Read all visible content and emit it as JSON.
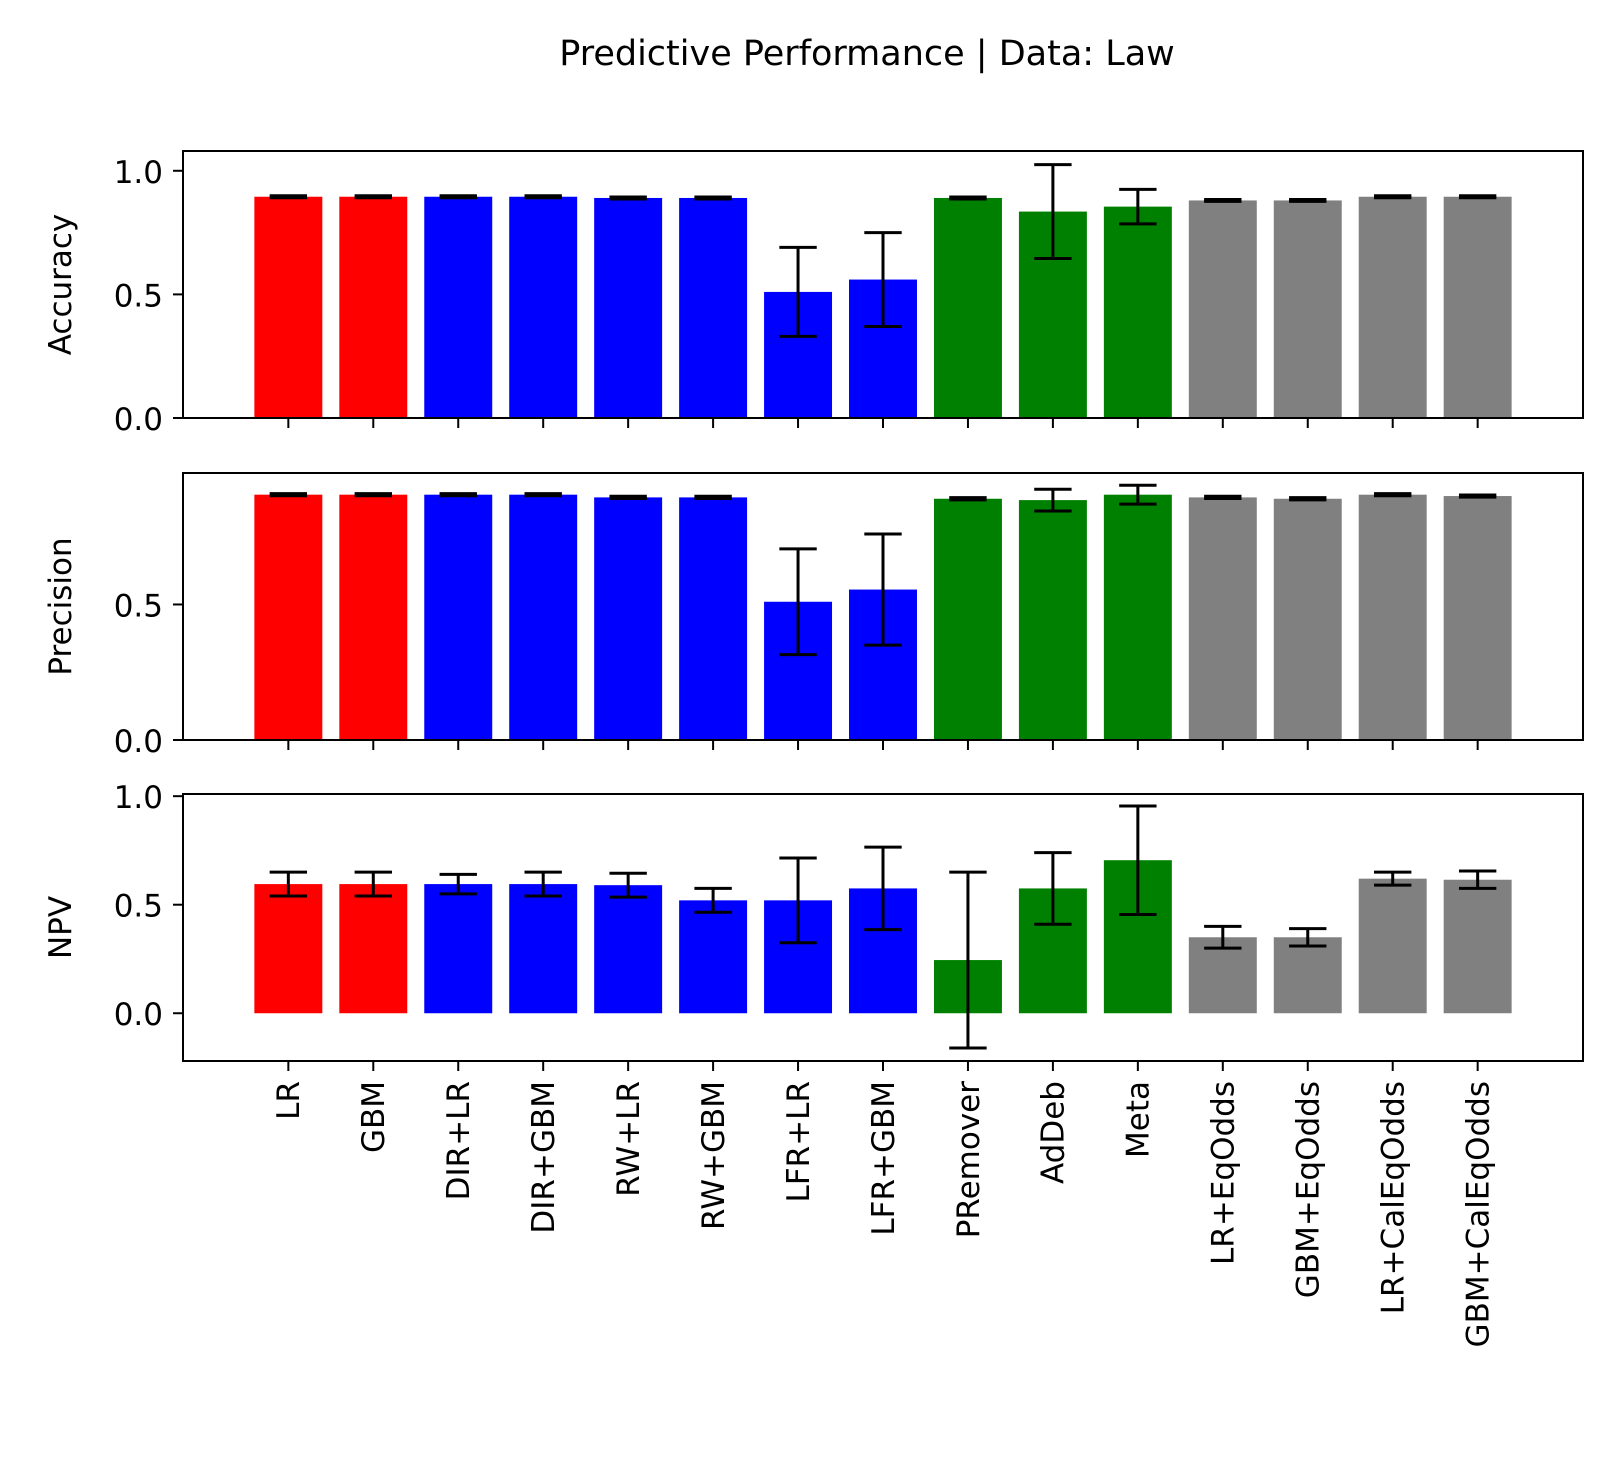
{
  "chart_data": {
    "type": "bar",
    "title": "Predictive Performance | Data: Law",
    "categories": [
      "LR",
      "GBM",
      "DIR+LR",
      "DIR+GBM",
      "RW+LR",
      "RW+GBM",
      "LFR+LR",
      "LFR+GBM",
      "PRemover",
      "AdDeb",
      "Meta",
      "LR+EqOdds",
      "GBM+EqOdds",
      "LR+CalEqOdds",
      "GBM+CalEqOdds"
    ],
    "bar_colors": [
      "#ff0000",
      "#ff0000",
      "#0000ff",
      "#0000ff",
      "#0000ff",
      "#0000ff",
      "#0000ff",
      "#0000ff",
      "#008000",
      "#008000",
      "#008000",
      "#808080",
      "#808080",
      "#808080",
      "#808080"
    ],
    "error_bar_color": "#000000",
    "panels": [
      {
        "ylabel": "Accuracy",
        "ylim": [
          0,
          1.08
        ],
        "yticks": [
          0.0,
          0.5,
          1.0
        ],
        "ytick_labels": [
          "0.0",
          "0.5",
          "1.0"
        ],
        "values": [
          0.895,
          0.895,
          0.895,
          0.895,
          0.89,
          0.89,
          0.51,
          0.56,
          0.89,
          0.835,
          0.855,
          0.88,
          0.88,
          0.895,
          0.895
        ],
        "errors": [
          0.004,
          0.004,
          0.004,
          0.004,
          0.004,
          0.004,
          0.18,
          0.19,
          0.004,
          0.19,
          0.07,
          0.004,
          0.004,
          0.004,
          0.004
        ]
      },
      {
        "ylabel": "Precision",
        "ylim": [
          0,
          0.985
        ],
        "yticks": [
          0.0,
          0.5
        ],
        "ytick_labels": [
          "0.0",
          "0.5"
        ],
        "values": [
          0.905,
          0.905,
          0.905,
          0.905,
          0.895,
          0.895,
          0.51,
          0.555,
          0.89,
          0.885,
          0.905,
          0.895,
          0.89,
          0.905,
          0.9
        ],
        "errors": [
          0.004,
          0.004,
          0.004,
          0.004,
          0.004,
          0.004,
          0.195,
          0.205,
          0.004,
          0.04,
          0.035,
          0.004,
          0.004,
          0.004,
          0.004
        ]
      },
      {
        "ylabel": "NPV",
        "ylim": [
          -0.22,
          1.01
        ],
        "yticks": [
          0.0,
          0.5,
          1.0
        ],
        "ytick_labels": [
          "0.0",
          "0.5",
          "1.0"
        ],
        "values": [
          0.595,
          0.595,
          0.595,
          0.595,
          0.59,
          0.52,
          0.52,
          0.575,
          0.245,
          0.575,
          0.705,
          0.35,
          0.35,
          0.62,
          0.615
        ],
        "errors": [
          0.055,
          0.055,
          0.045,
          0.055,
          0.055,
          0.055,
          0.195,
          0.19,
          0.405,
          0.165,
          0.25,
          0.05,
          0.04,
          0.03,
          0.04
        ]
      }
    ]
  }
}
